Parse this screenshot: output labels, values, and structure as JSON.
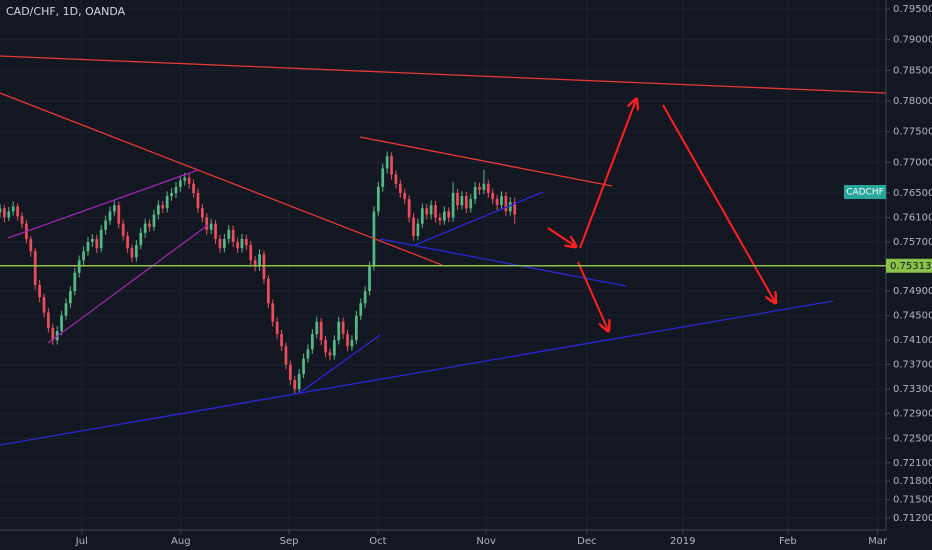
{
  "chart_data": {
    "type": "candlestick",
    "title": "CAD/CHF, 1D, OANDA",
    "symbol_tag": "CADCHF",
    "up_color": "#53b987",
    "down_color": "#eb4d5c",
    "price_line": {
      "value": 0.75313,
      "label": "0.75313",
      "color": "#8bc34a"
    },
    "xlim": [
      0,
      201.4
    ],
    "xticks": [
      {
        "value": 18.6,
        "label": "Jul"
      },
      {
        "value": 41.1,
        "label": "Aug"
      },
      {
        "value": 65.7,
        "label": "Sep"
      },
      {
        "value": 85.9,
        "label": "Oct"
      },
      {
        "value": 110.5,
        "label": "Nov"
      },
      {
        "value": 133.4,
        "label": "Dec"
      },
      {
        "value": 155.2,
        "label": "2019"
      },
      {
        "value": 179.1,
        "label": "Feb"
      },
      {
        "value": 199.5,
        "label": "Mar"
      }
    ],
    "ylim": [
      0.71004,
      0.79647
    ],
    "yticks": [
      {
        "value": 0.795,
        "label": "0.79500"
      },
      {
        "value": 0.79,
        "label": "0.79000"
      },
      {
        "value": 0.785,
        "label": "0.78500"
      },
      {
        "value": 0.78,
        "label": "0.78000"
      },
      {
        "value": 0.775,
        "label": "0.77500"
      },
      {
        "value": 0.77,
        "label": "0.77000"
      },
      {
        "value": 0.765,
        "label": "0.76500"
      },
      {
        "value": 0.761,
        "label": "0.76100"
      },
      {
        "value": 0.757,
        "label": "0.75700"
      },
      {
        "value": 0.749,
        "label": "0.74900"
      },
      {
        "value": 0.745,
        "label": "0.74500"
      },
      {
        "value": 0.741,
        "label": "0.74100"
      },
      {
        "value": 0.737,
        "label": "0.73700"
      },
      {
        "value": 0.733,
        "label": "0.73300"
      },
      {
        "value": 0.729,
        "label": "0.72900"
      },
      {
        "value": 0.725,
        "label": "0.72500"
      },
      {
        "value": 0.721,
        "label": "0.72100"
      },
      {
        "value": 0.718,
        "label": "0.71800"
      },
      {
        "value": 0.715,
        "label": "0.71500"
      },
      {
        "value": 0.712,
        "label": "0.71200"
      }
    ],
    "ohlc": [
      [
        0.7618,
        0.7632,
        0.761,
        0.7625
      ],
      [
        0.7625,
        0.763,
        0.7602,
        0.761
      ],
      [
        0.761,
        0.7627,
        0.7604,
        0.762
      ],
      [
        0.762,
        0.7636,
        0.7613,
        0.7628
      ],
      [
        0.7628,
        0.7633,
        0.7605,
        0.7612
      ],
      [
        0.7612,
        0.7618,
        0.7592,
        0.76
      ],
      [
        0.76,
        0.7606,
        0.7568,
        0.7575
      ],
      [
        0.7575,
        0.758,
        0.7546,
        0.7555
      ],
      [
        0.7555,
        0.756,
        0.7492,
        0.75
      ],
      [
        0.75,
        0.7508,
        0.7472,
        0.748
      ],
      [
        0.748,
        0.7486,
        0.7447,
        0.7455
      ],
      [
        0.7455,
        0.7462,
        0.7422,
        0.743
      ],
      [
        0.743,
        0.7437,
        0.7402,
        0.741
      ],
      [
        0.741,
        0.7433,
        0.7403,
        0.7425
      ],
      [
        0.7425,
        0.7458,
        0.7418,
        0.745
      ],
      [
        0.745,
        0.7478,
        0.7443,
        0.747
      ],
      [
        0.747,
        0.7498,
        0.7462,
        0.749
      ],
      [
        0.749,
        0.7528,
        0.7483,
        0.752
      ],
      [
        0.752,
        0.7548,
        0.7512,
        0.754
      ],
      [
        0.754,
        0.7563,
        0.7532,
        0.7555
      ],
      [
        0.7555,
        0.7578,
        0.7548,
        0.757
      ],
      [
        0.757,
        0.7583,
        0.7562,
        0.7575
      ],
      [
        0.7575,
        0.7582,
        0.7552,
        0.756
      ],
      [
        0.756,
        0.7598,
        0.7553,
        0.759
      ],
      [
        0.759,
        0.7613,
        0.7582,
        0.7605
      ],
      [
        0.7605,
        0.7628,
        0.7598,
        0.762
      ],
      [
        0.762,
        0.7638,
        0.7612,
        0.763
      ],
      [
        0.763,
        0.7636,
        0.7592,
        0.76
      ],
      [
        0.76,
        0.7607,
        0.7572,
        0.758
      ],
      [
        0.758,
        0.7587,
        0.7552,
        0.756
      ],
      [
        0.756,
        0.7566,
        0.7537,
        0.7545
      ],
      [
        0.7545,
        0.7573,
        0.7538,
        0.7565
      ],
      [
        0.7565,
        0.7593,
        0.7558,
        0.7585
      ],
      [
        0.7585,
        0.7608,
        0.7577,
        0.76
      ],
      [
        0.76,
        0.7607,
        0.7587,
        0.7595
      ],
      [
        0.7595,
        0.7623,
        0.7588,
        0.7615
      ],
      [
        0.7615,
        0.7638,
        0.7607,
        0.763
      ],
      [
        0.763,
        0.7637,
        0.7617,
        0.7625
      ],
      [
        0.7625,
        0.7653,
        0.7618,
        0.7645
      ],
      [
        0.7645,
        0.7658,
        0.7637,
        0.765
      ],
      [
        0.765,
        0.7668,
        0.7642,
        0.766
      ],
      [
        0.766,
        0.7678,
        0.7652,
        0.767
      ],
      [
        0.767,
        0.7683,
        0.7662,
        0.7675
      ],
      [
        0.7675,
        0.7682,
        0.7657,
        0.7665
      ],
      [
        0.7665,
        0.7672,
        0.7642,
        0.765
      ],
      [
        0.765,
        0.7657,
        0.7617,
        0.7625
      ],
      [
        0.7625,
        0.7632,
        0.7602,
        0.761
      ],
      [
        0.761,
        0.7617,
        0.7582,
        0.759
      ],
      [
        0.759,
        0.7608,
        0.7583,
        0.76
      ],
      [
        0.76,
        0.7606,
        0.7567,
        0.7575
      ],
      [
        0.7575,
        0.7582,
        0.7552,
        0.756
      ],
      [
        0.756,
        0.7583,
        0.7553,
        0.7575
      ],
      [
        0.7575,
        0.7598,
        0.7568,
        0.759
      ],
      [
        0.759,
        0.7597,
        0.7562,
        0.757
      ],
      [
        0.757,
        0.7577,
        0.7552,
        0.756
      ],
      [
        0.756,
        0.7583,
        0.7553,
        0.7575
      ],
      [
        0.7575,
        0.7582,
        0.7557,
        0.7565
      ],
      [
        0.7565,
        0.7572,
        0.7532,
        0.754
      ],
      [
        0.754,
        0.7547,
        0.7522,
        0.753
      ],
      [
        0.753,
        0.7558,
        0.7523,
        0.755
      ],
      [
        0.755,
        0.7556,
        0.7502,
        0.751
      ],
      [
        0.751,
        0.7516,
        0.7462,
        0.747
      ],
      [
        0.747,
        0.7476,
        0.7432,
        0.744
      ],
      [
        0.744,
        0.7447,
        0.7412,
        0.742
      ],
      [
        0.742,
        0.7427,
        0.7392,
        0.74
      ],
      [
        0.74,
        0.7406,
        0.7362,
        0.737
      ],
      [
        0.737,
        0.7377,
        0.7337,
        0.7345
      ],
      [
        0.7345,
        0.7352,
        0.7322,
        0.733
      ],
      [
        0.733,
        0.7363,
        0.7324,
        0.7355
      ],
      [
        0.7355,
        0.7388,
        0.7348,
        0.738
      ],
      [
        0.738,
        0.7403,
        0.7373,
        0.7395
      ],
      [
        0.7395,
        0.7428,
        0.7388,
        0.742
      ],
      [
        0.742,
        0.7448,
        0.7413,
        0.744
      ],
      [
        0.744,
        0.7446,
        0.7402,
        0.741
      ],
      [
        0.741,
        0.7417,
        0.7382,
        0.739
      ],
      [
        0.739,
        0.7396,
        0.7377,
        0.7385
      ],
      [
        0.7385,
        0.7418,
        0.7378,
        0.741
      ],
      [
        0.741,
        0.7448,
        0.7403,
        0.744
      ],
      [
        0.744,
        0.7447,
        0.7412,
        0.742
      ],
      [
        0.742,
        0.7427,
        0.7392,
        0.74
      ],
      [
        0.74,
        0.7418,
        0.7393,
        0.741
      ],
      [
        0.741,
        0.7458,
        0.7403,
        0.745
      ],
      [
        0.745,
        0.7478,
        0.7443,
        0.747
      ],
      [
        0.747,
        0.7498,
        0.7462,
        0.749
      ],
      [
        0.749,
        0.7538,
        0.7483,
        0.753
      ],
      [
        0.753,
        0.7628,
        0.7523,
        0.762
      ],
      [
        0.762,
        0.7668,
        0.7612,
        0.766
      ],
      [
        0.766,
        0.7698,
        0.7652,
        0.769
      ],
      [
        0.769,
        0.7718,
        0.7682,
        0.771
      ],
      [
        0.771,
        0.7716,
        0.7672,
        0.768
      ],
      [
        0.768,
        0.7687,
        0.7657,
        0.7665
      ],
      [
        0.7665,
        0.7672,
        0.7642,
        0.765
      ],
      [
        0.765,
        0.7657,
        0.7632,
        0.764
      ],
      [
        0.764,
        0.7646,
        0.7602,
        0.761
      ],
      [
        0.761,
        0.7617,
        0.7572,
        0.758
      ],
      [
        0.758,
        0.7608,
        0.7573,
        0.76
      ],
      [
        0.76,
        0.7633,
        0.7593,
        0.7625
      ],
      [
        0.7625,
        0.7632,
        0.7607,
        0.7615
      ],
      [
        0.7615,
        0.7638,
        0.7607,
        0.763
      ],
      [
        0.763,
        0.7637,
        0.7602,
        0.761
      ],
      [
        0.761,
        0.7617,
        0.7597,
        0.7605
      ],
      [
        0.7605,
        0.7628,
        0.7598,
        0.762
      ],
      [
        0.762,
        0.7627,
        0.7602,
        0.761
      ],
      [
        0.761,
        0.7668,
        0.7603,
        0.765
      ],
      [
        0.765,
        0.7657,
        0.7622,
        0.763
      ],
      [
        0.763,
        0.7653,
        0.7623,
        0.7645
      ],
      [
        0.7645,
        0.7652,
        0.7617,
        0.7625
      ],
      [
        0.7625,
        0.7648,
        0.7618,
        0.764
      ],
      [
        0.764,
        0.7668,
        0.7632,
        0.766
      ],
      [
        0.766,
        0.7667,
        0.7647,
        0.7655
      ],
      [
        0.7655,
        0.7688,
        0.7648,
        0.7665
      ],
      [
        0.7665,
        0.7672,
        0.7642,
        0.765
      ],
      [
        0.765,
        0.7657,
        0.7632,
        0.764
      ],
      [
        0.764,
        0.7647,
        0.7622,
        0.763
      ],
      [
        0.763,
        0.7653,
        0.7623,
        0.7645
      ],
      [
        0.7645,
        0.7652,
        0.7612,
        0.762
      ],
      [
        0.762,
        0.7643,
        0.7613,
        0.7635
      ],
      [
        0.7635,
        0.7642,
        0.76,
        0.7615
      ]
    ]
  }
}
